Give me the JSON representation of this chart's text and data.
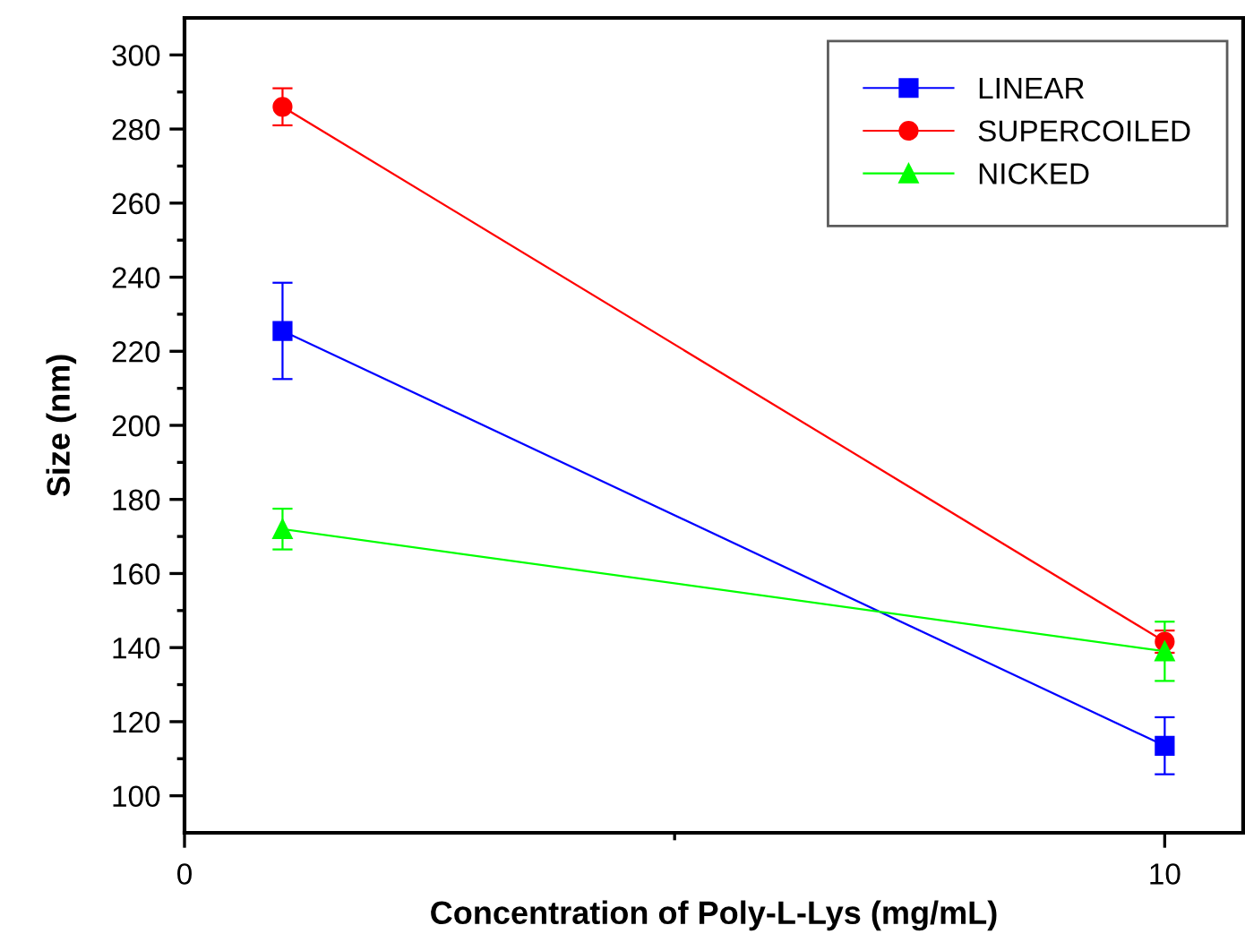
{
  "chart_data": {
    "type": "line",
    "xlabel": "Concentration of Poly-L-Lys (mg/mL)",
    "ylabel": "Size (nm)",
    "x": [
      1,
      10
    ],
    "series": [
      {
        "name": "LINEAR",
        "color": "#0000ff",
        "values": [
          225.5,
          113.5
        ],
        "errors": [
          13,
          7.7
        ],
        "marker": "square"
      },
      {
        "name": "SUPERCOILED",
        "color": "#ff0000",
        "values": [
          286,
          141.6
        ],
        "errors": [
          5,
          3
        ],
        "marker": "circle"
      },
      {
        "name": "NICKED",
        "color": "#00ff00",
        "values": [
          172,
          139
        ],
        "errors": [
          5.5,
          8
        ],
        "marker": "triangle"
      }
    ],
    "xlim": [
      0,
      10.8
    ],
    "ylim": [
      90,
      310
    ],
    "xticks": [
      0,
      {
        "value": 5,
        "label": null
      },
      10
    ],
    "yticks": [
      100,
      {
        "value": 110,
        "label": null
      },
      120,
      {
        "value": 130,
        "label": null
      },
      140,
      {
        "value": 150,
        "label": null
      },
      160,
      {
        "value": 170,
        "label": null
      },
      180,
      {
        "value": 190,
        "label": null
      },
      200,
      {
        "value": 210,
        "label": null
      },
      220,
      {
        "value": 230,
        "label": null
      },
      240,
      {
        "value": 250,
        "label": null
      },
      260,
      {
        "value": 270,
        "label": null
      },
      280,
      {
        "value": 290,
        "label": null
      },
      300
    ],
    "grid": false,
    "legend": "top right",
    "line_style": "solid"
  }
}
